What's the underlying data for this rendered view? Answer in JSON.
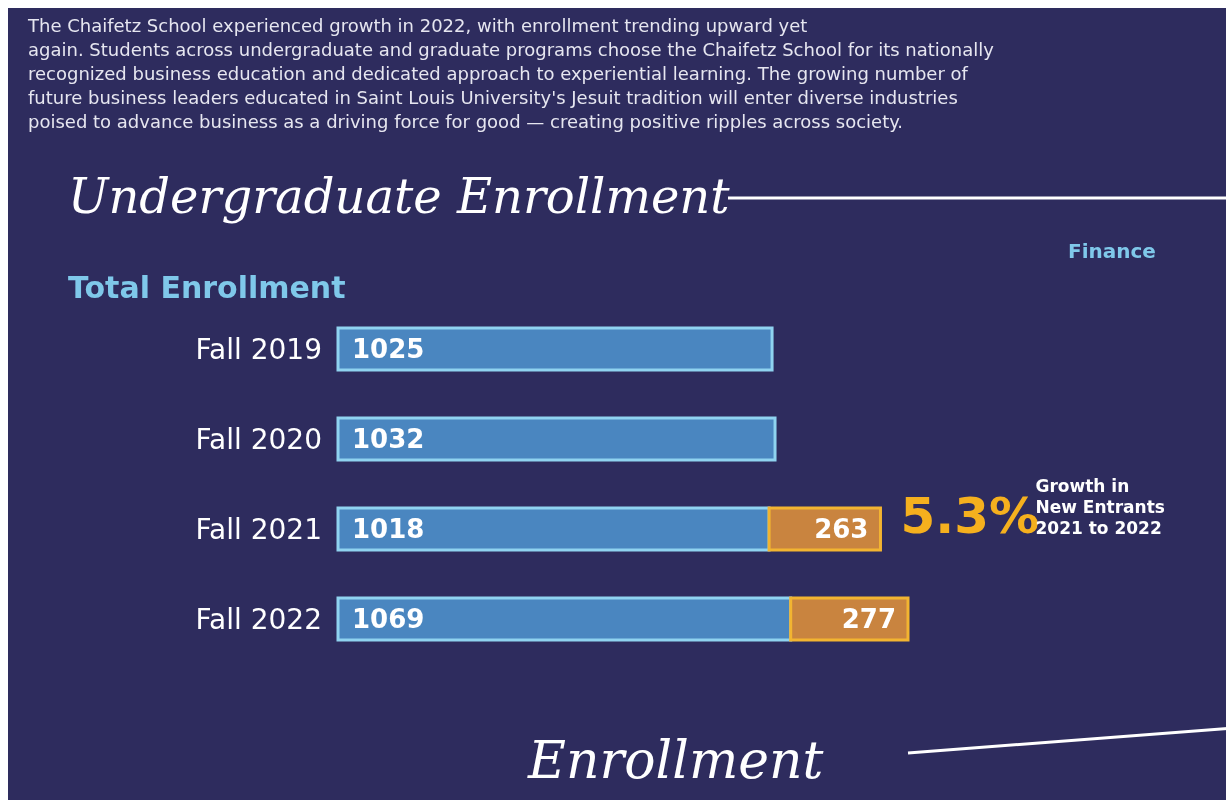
{
  "chart_data": {
    "type": "bar",
    "orientation": "horizontal",
    "stacked": true,
    "title": "Undergraduate Enrollment",
    "subtitle": "Total Enrollment",
    "categories": [
      "Fall 2019",
      "Fall 2020",
      "Fall 2021",
      "Fall 2022"
    ],
    "series": [
      {
        "color": "#4a86c0",
        "values": [
          1025,
          1032,
          1018,
          1069
        ]
      },
      {
        "color": "#c9843f",
        "values": [
          null,
          null,
          263,
          277
        ]
      }
    ],
    "data_labels": true,
    "annotations": [
      "The Chaifetz School experienced growth in 2022, with enrollment trending upward yet",
      "again. Students across undergraduate and graduate programs choose the Chaifetz School for its nationally",
      "recognized business education and dedicated approach to experiential learning. The growing number of",
      "future business leaders educated in Saint Louis University's Jesuit tradition will enter diverse industries",
      "poised to advance business as a driving force for good — creating positive ripples across society.",
      "5.3%",
      "Growth in New Entrants 2021 to 2022",
      "Finance",
      "Enrollment"
    ]
  }
}
